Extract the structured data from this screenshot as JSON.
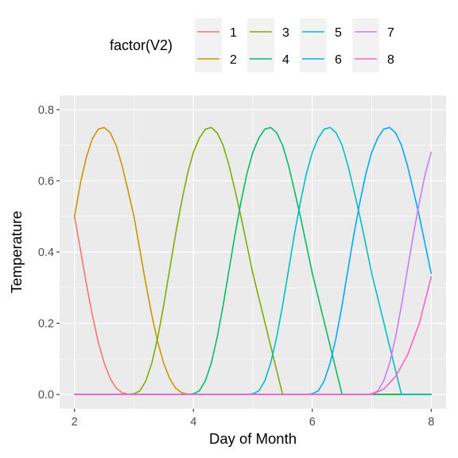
{
  "chart_data": {
    "type": "line",
    "xlabel": "Day of Month",
    "ylabel": "Temperature",
    "xlim": [
      1.75,
      8.25
    ],
    "ylim": [
      -0.04,
      0.84
    ],
    "x_ticks": [
      2,
      4,
      6,
      8
    ],
    "y_ticks": [
      0.0,
      0.2,
      0.4,
      0.6,
      0.8
    ],
    "x_tick_labels": [
      "2",
      "4",
      "6",
      "8"
    ],
    "y_tick_labels": [
      "0.0",
      "0.2",
      "0.4",
      "0.6",
      "0.8"
    ],
    "grid": true,
    "legend": {
      "title": "factor(V2)",
      "placement": "top",
      "labels": [
        "1",
        "2",
        "3",
        "4",
        "5",
        "6",
        "7",
        "8"
      ]
    },
    "series": [
      {
        "name": "1",
        "color": "#F8766D",
        "x": [
          2.0,
          2.1,
          2.2,
          2.3,
          2.4,
          2.5,
          2.6,
          2.7,
          2.8,
          2.9,
          3.0,
          3.2,
          3.5,
          4.0,
          5.0,
          6.0,
          7.0,
          8.0
        ],
        "y": [
          0.5,
          0.406,
          0.311,
          0.223,
          0.147,
          0.088,
          0.045,
          0.018,
          0.005,
          0.001,
          0.0,
          0.0,
          0.0,
          0.0,
          0.0,
          0.0,
          0.0,
          0.0
        ]
      },
      {
        "name": "2",
        "color": "#CD9600",
        "x": [
          2.0,
          2.1,
          2.2,
          2.3,
          2.4,
          2.5,
          2.6,
          2.7,
          2.8,
          2.9,
          3.0,
          3.1,
          3.2,
          3.3,
          3.4,
          3.5,
          3.6,
          3.7,
          3.8,
          3.9,
          4.0,
          4.5,
          5.0,
          6.0,
          7.0,
          8.0
        ],
        "y": [
          0.5,
          0.594,
          0.666,
          0.718,
          0.745,
          0.75,
          0.735,
          0.7,
          0.643,
          0.573,
          0.5,
          0.406,
          0.311,
          0.223,
          0.147,
          0.088,
          0.045,
          0.018,
          0.005,
          0.001,
          0.0,
          0.0,
          0.0,
          0.0,
          0.0,
          0.0
        ]
      },
      {
        "name": "3",
        "color": "#7CAE00",
        "x": [
          2.0,
          2.5,
          2.9,
          3.0,
          3.1,
          3.2,
          3.3,
          3.4,
          3.5,
          3.6,
          3.7,
          3.8,
          3.9,
          4.0,
          4.1,
          4.2,
          4.3,
          4.4,
          4.5,
          4.6,
          4.7,
          4.8,
          4.9,
          5.0,
          5.5,
          6.0,
          7.0,
          8.0
        ],
        "y": [
          0.0,
          0.0,
          0.0,
          0.002,
          0.01,
          0.038,
          0.088,
          0.16,
          0.25,
          0.35,
          0.45,
          0.54,
          0.62,
          0.68,
          0.72,
          0.745,
          0.75,
          0.735,
          0.7,
          0.643,
          0.573,
          0.5,
          0.42,
          0.34,
          0.0,
          0.0,
          0.0,
          0.0
        ]
      },
      {
        "name": "4",
        "color": "#00BE67",
        "x": [
          2.0,
          3.0,
          3.9,
          4.0,
          4.1,
          4.2,
          4.3,
          4.4,
          4.5,
          4.6,
          4.7,
          4.8,
          4.9,
          5.0,
          5.1,
          5.2,
          5.3,
          5.4,
          5.5,
          5.6,
          5.7,
          5.8,
          5.9,
          6.0,
          6.5,
          7.0,
          8.0
        ],
        "y": [
          0.0,
          0.0,
          0.0,
          0.002,
          0.01,
          0.038,
          0.088,
          0.16,
          0.25,
          0.35,
          0.45,
          0.54,
          0.62,
          0.68,
          0.72,
          0.745,
          0.75,
          0.735,
          0.7,
          0.643,
          0.573,
          0.5,
          0.42,
          0.34,
          0.0,
          0.0,
          0.0
        ]
      },
      {
        "name": "5",
        "color": "#00BFC4",
        "x": [
          2.0,
          4.0,
          4.9,
          5.0,
          5.1,
          5.2,
          5.3,
          5.4,
          5.5,
          5.6,
          5.7,
          5.8,
          5.9,
          6.0,
          6.1,
          6.2,
          6.3,
          6.4,
          6.5,
          6.6,
          6.7,
          6.8,
          6.9,
          7.0,
          7.5,
          8.0
        ],
        "y": [
          0.0,
          0.0,
          0.0,
          0.002,
          0.01,
          0.038,
          0.088,
          0.16,
          0.25,
          0.35,
          0.45,
          0.54,
          0.62,
          0.68,
          0.72,
          0.745,
          0.75,
          0.735,
          0.7,
          0.643,
          0.573,
          0.5,
          0.42,
          0.34,
          0.0,
          0.0
        ]
      },
      {
        "name": "6",
        "color": "#00A9FF",
        "x": [
          2.0,
          5.0,
          5.9,
          6.0,
          6.1,
          6.2,
          6.3,
          6.4,
          6.5,
          6.6,
          6.7,
          6.8,
          6.9,
          7.0,
          7.1,
          7.2,
          7.3,
          7.4,
          7.5,
          7.6,
          7.7,
          7.8,
          7.9,
          8.0
        ],
        "y": [
          0.0,
          0.0,
          0.0,
          0.002,
          0.01,
          0.038,
          0.088,
          0.16,
          0.25,
          0.35,
          0.45,
          0.54,
          0.62,
          0.68,
          0.72,
          0.745,
          0.75,
          0.735,
          0.7,
          0.643,
          0.573,
          0.5,
          0.42,
          0.34
        ]
      },
      {
        "name": "7",
        "color": "#C77CFF",
        "x": [
          2.0,
          6.0,
          6.9,
          7.0,
          7.1,
          7.2,
          7.3,
          7.4,
          7.5,
          7.6,
          7.7,
          7.8,
          7.9,
          8.0
        ],
        "y": [
          0.0,
          0.0,
          0.0,
          0.002,
          0.01,
          0.038,
          0.088,
          0.16,
          0.25,
          0.35,
          0.45,
          0.54,
          0.62,
          0.68
        ]
      },
      {
        "name": "8",
        "color": "#FF61CC",
        "x": [
          2.0,
          6.5,
          7.0,
          7.2,
          7.4,
          7.6,
          7.8,
          8.0
        ],
        "y": [
          0.0,
          0.0,
          0.0,
          0.015,
          0.05,
          0.11,
          0.2,
          0.33
        ]
      }
    ]
  }
}
